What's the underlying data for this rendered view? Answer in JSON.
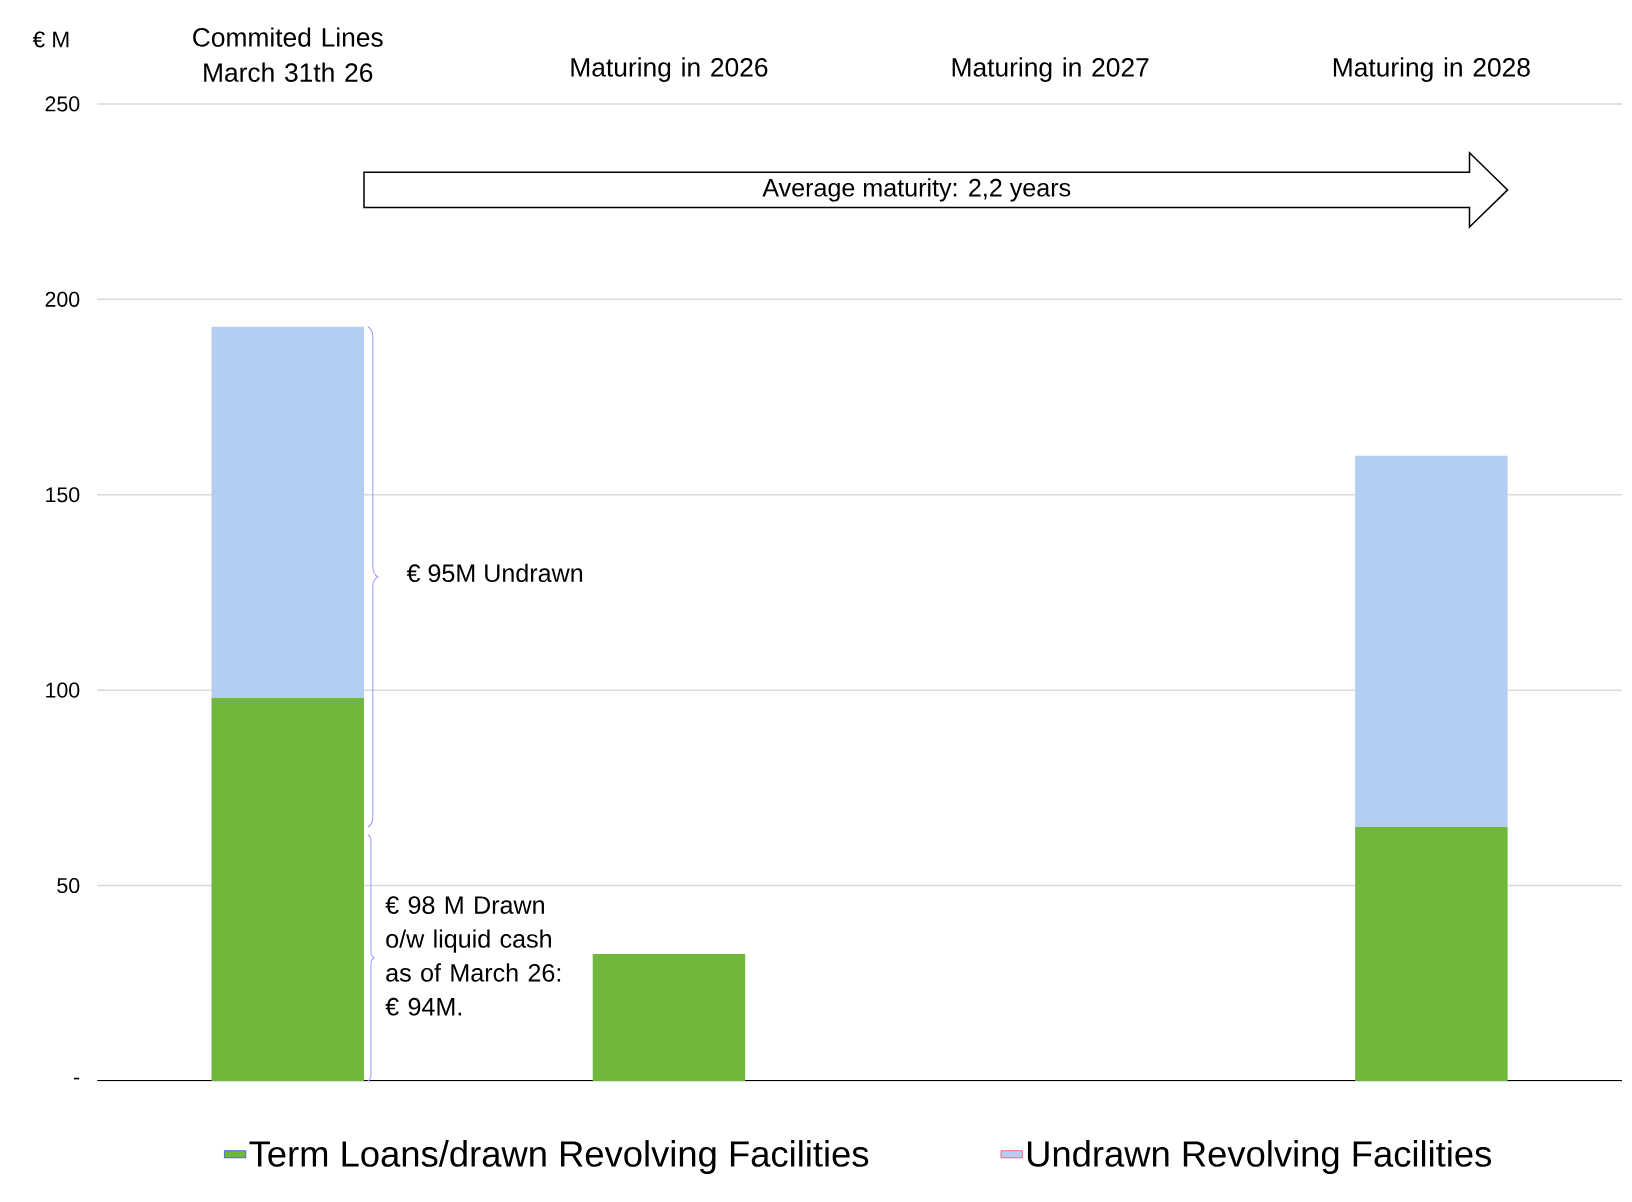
{
  "chart_data": {
    "type": "bar",
    "stacked": true,
    "ylabel": "€ M",
    "categories": [
      "Commited Lines March  31th 26",
      "Maturing in 2026",
      "Maturing in 2027",
      "Maturing in 2028"
    ],
    "series": [
      {
        "name": "Term Loans/drawn Revolving Facilities",
        "color": "#70b83c",
        "values": [
          98,
          32.5,
          null,
          65
        ]
      },
      {
        "name": "Undrawn Revolving Facilities",
        "color": "#b4cdf2",
        "values": [
          95,
          null,
          null,
          95
        ]
      }
    ],
    "ylim": [
      0,
      250
    ],
    "yticks": [
      {
        "value": 0,
        "label": "-"
      },
      50,
      100,
      150,
      200,
      250
    ],
    "grid": "y",
    "legend": "bottom",
    "annotations": [
      "Average maturity: 2,2 years",
      "€  95M Undrawn",
      "€ 98 M Drawn o/w liquid cash as of March 26: € 94M."
    ]
  }
}
